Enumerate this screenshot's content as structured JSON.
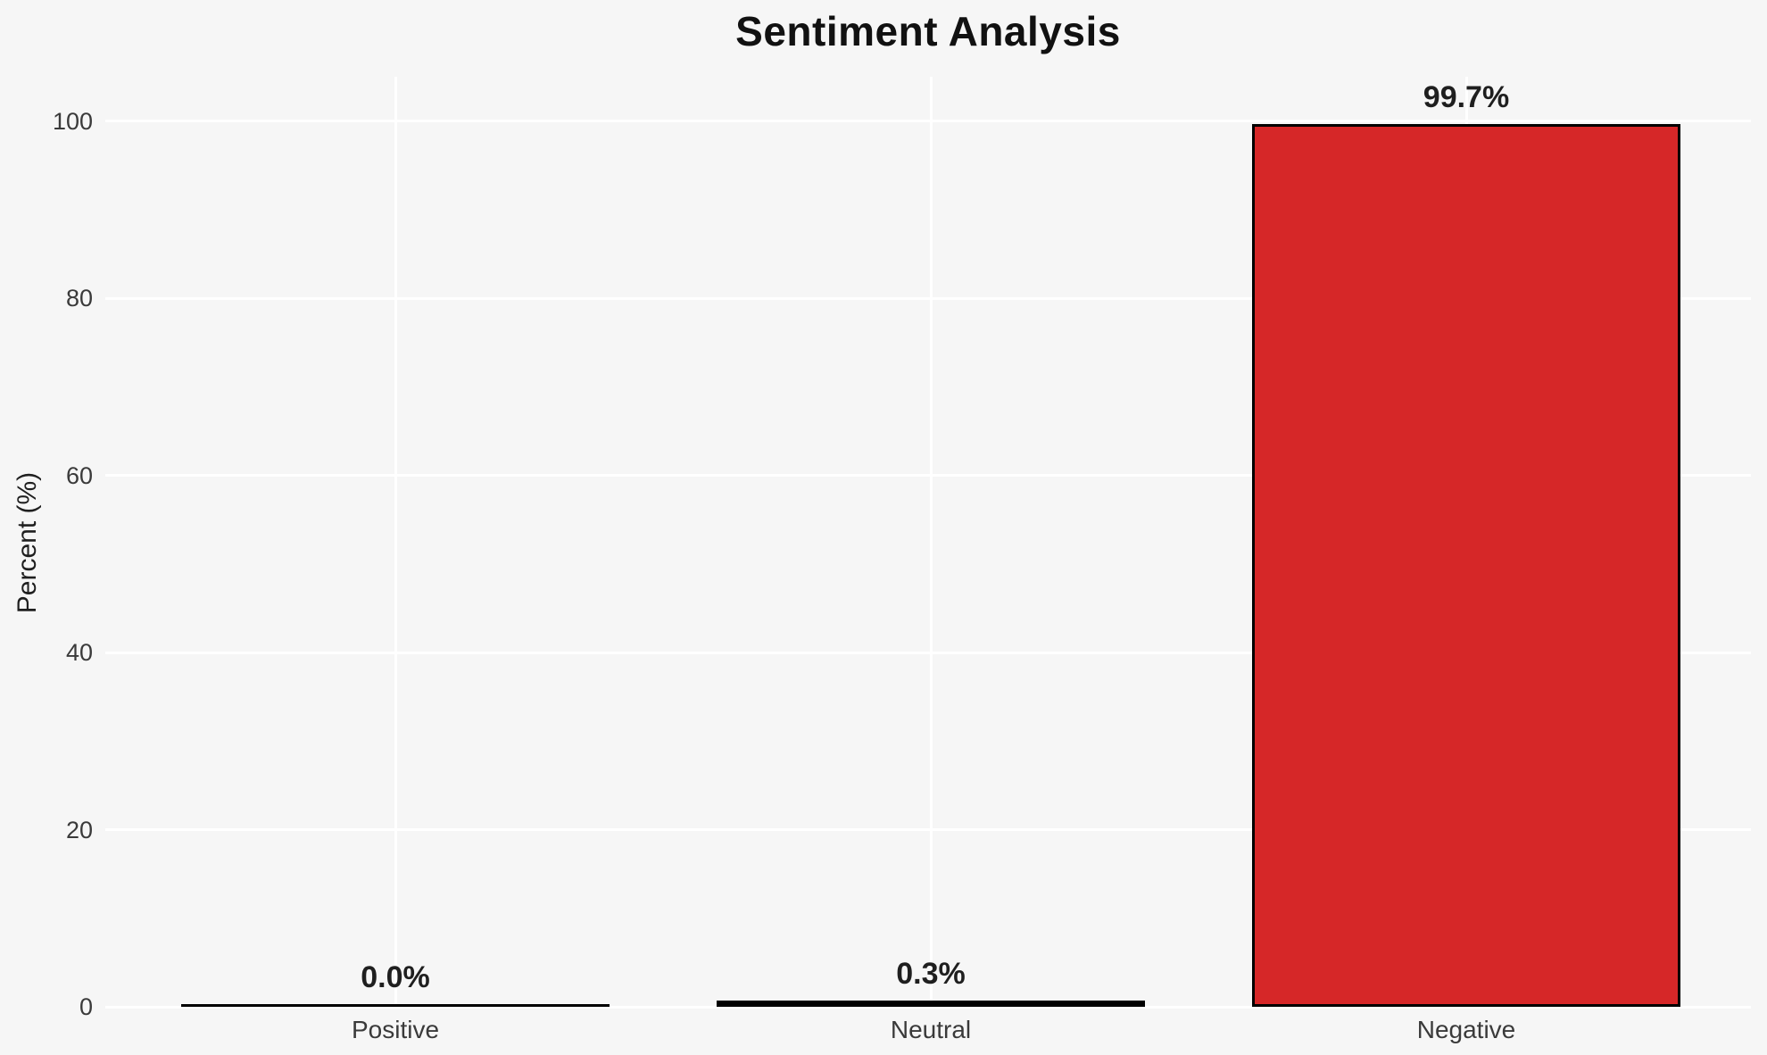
{
  "chart_data": {
    "type": "bar",
    "title": "Sentiment Analysis",
    "xlabel": "",
    "ylabel": "Percent (%)",
    "categories": [
      "Positive",
      "Neutral",
      "Negative"
    ],
    "values": [
      0.0,
      0.3,
      99.7
    ],
    "bar_labels": [
      "0.0%",
      "0.3%",
      "99.7%"
    ],
    "yticks": [
      0,
      20,
      40,
      60,
      80,
      100
    ],
    "ylim": [
      0,
      105
    ],
    "grid": true,
    "legend": false,
    "colors": {
      "bar_fill": "#d62728",
      "bar_edge": "#000000",
      "background": "#f6f6f6",
      "gridline": "#ffffff",
      "title_text": "#111111",
      "label_text": "#1f1f1f",
      "tick_text": "#3a3a3a"
    }
  }
}
